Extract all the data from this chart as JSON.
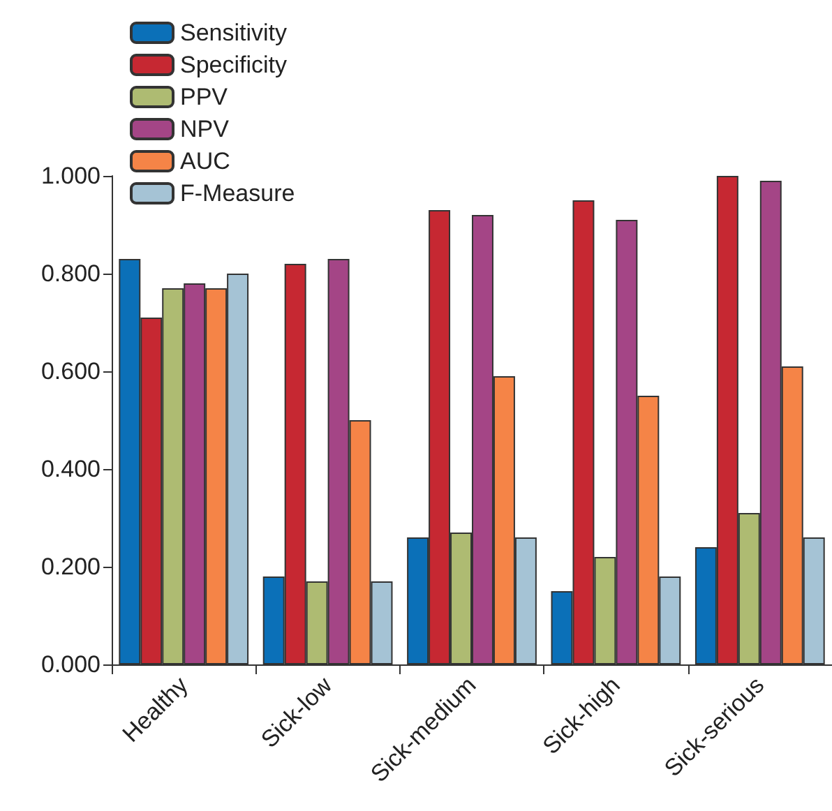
{
  "chart_data": {
    "type": "bar",
    "categories": [
      "Healthy",
      "Sick-low",
      "Sick-medium",
      "Sick-high",
      "Sick-serious"
    ],
    "series": [
      {
        "name": "Sensitivity",
        "color": "#0b70b8",
        "values": [
          0.83,
          0.18,
          0.26,
          0.15,
          0.24
        ]
      },
      {
        "name": "Specificity",
        "color": "#c62832",
        "values": [
          0.71,
          0.82,
          0.93,
          0.95,
          1.0
        ]
      },
      {
        "name": "PPV",
        "color": "#aebb72",
        "values": [
          0.77,
          0.17,
          0.27,
          0.22,
          0.31
        ]
      },
      {
        "name": "NPV",
        "color": "#a44586",
        "values": [
          0.78,
          0.83,
          0.92,
          0.91,
          0.99
        ]
      },
      {
        "name": "AUC",
        "color": "#f58447",
        "values": [
          0.77,
          0.5,
          0.59,
          0.55,
          0.61
        ]
      },
      {
        "name": "F-Measure",
        "color": "#a5c3d5",
        "values": [
          0.8,
          0.17,
          0.26,
          0.18,
          0.26
        ]
      }
    ],
    "ylim": [
      0,
      1
    ],
    "yticks": [
      {
        "value": 0,
        "label": "0.000"
      },
      {
        "value": 0.2,
        "label": "0.200"
      },
      {
        "value": 0.4,
        "label": "0.400"
      },
      {
        "value": 0.6,
        "label": "0.600"
      },
      {
        "value": 0.8,
        "label": "0.800"
      },
      {
        "value": 1,
        "label": "1.000"
      }
    ],
    "grid": false,
    "legend": "top left"
  }
}
